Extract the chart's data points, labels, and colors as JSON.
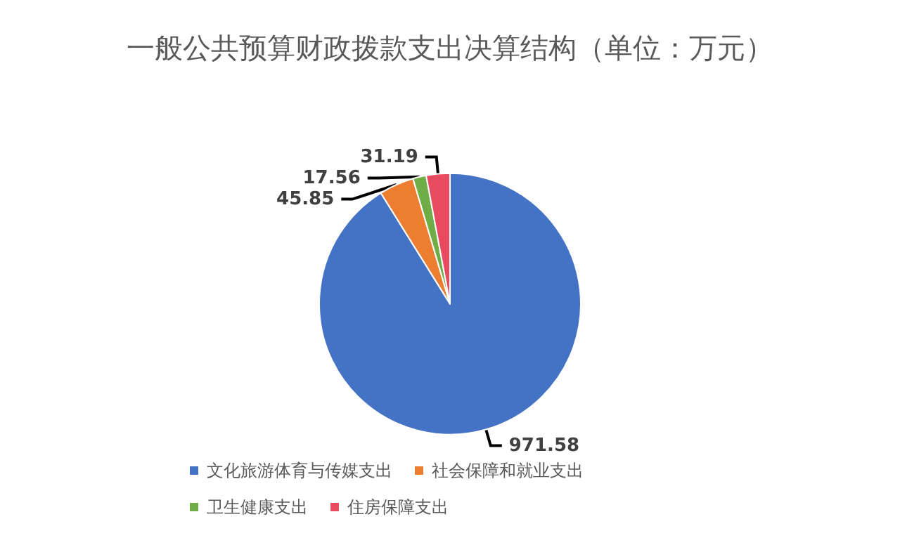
{
  "chart_data": {
    "type": "pie",
    "title": "一般公共预算财政拨款支出决算结构（单位：万元）",
    "categories": [
      "文化旅游体育与传媒支出",
      "社会保障和就业支出",
      "卫生健康支出",
      "住房保障支出"
    ],
    "values": [
      971.58,
      45.85,
      17.56,
      31.19
    ],
    "colors": [
      "#4472c4",
      "#ed7d31",
      "#70ad47",
      "#e84a5f"
    ],
    "data_labels": true,
    "legend": "bottom"
  }
}
